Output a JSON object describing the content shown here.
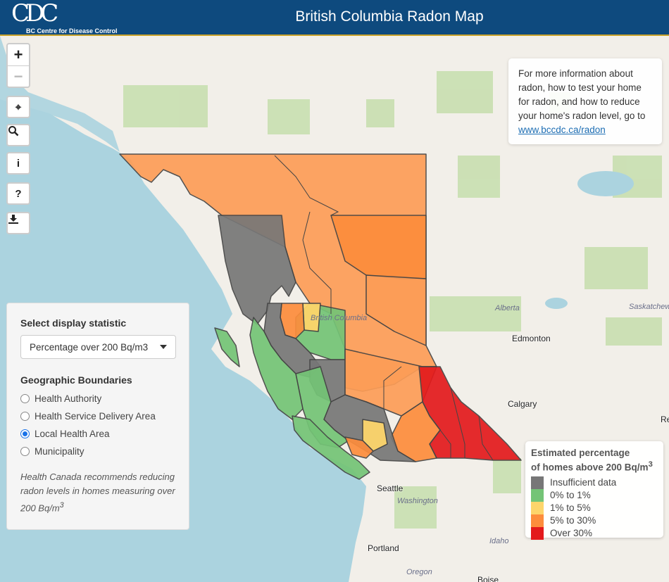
{
  "header": {
    "logo_mark": "CDC",
    "logo_text": "BC Centre for Disease Control",
    "title": "British Columbia Radon Map"
  },
  "controls": {
    "zoom_in": "+",
    "zoom_out": "−",
    "locate": "⌖",
    "search": "⚲",
    "info": "i",
    "help": "?",
    "download": "⤓"
  },
  "info_box": {
    "text": "For more information about radon, how to test your home for radon, and how to reduce your home's radon level, go to",
    "link": "www.bccdc.ca/radon"
  },
  "panel": {
    "statistic_label": "Select display statistic",
    "statistic_value": "Percentage over 200 Bq/m3",
    "boundaries_label": "Geographic Boundaries",
    "boundaries": [
      {
        "label": "Health Authority",
        "checked": false
      },
      {
        "label": "Health Service Delivery Area",
        "checked": false
      },
      {
        "label": "Local Health Area",
        "checked": true
      },
      {
        "label": "Municipality",
        "checked": false
      }
    ],
    "note": "Health Canada recommends reducing radon levels in homes measuring over 200 Bq/m",
    "note_sup": "3"
  },
  "legend": {
    "title_line1": "Estimated percentage",
    "title_line2": "of homes above 200 Bq/m",
    "title_sup": "3",
    "items": [
      {
        "label": "Insufficient data",
        "color": "#777777"
      },
      {
        "label": "0% to 1%",
        "color": "#74c476"
      },
      {
        "label": "1% to 5%",
        "color": "#fdd56b"
      },
      {
        "label": "5% to 30%",
        "color": "#fd8d3c"
      },
      {
        "label": "Over 30%",
        "color": "#e31a1c"
      }
    ]
  },
  "map_labels": {
    "british_columbia": "British Columbia",
    "alberta": "Alberta",
    "saskatchewan": "Saskatchewa",
    "edmonton": "Edmonton",
    "calgary": "Calgary",
    "seattle": "Seattle",
    "washington": "Washington",
    "portland": "Portland",
    "oregon": "Oregon",
    "idaho": "Idaho",
    "boise": "Boise",
    "regina_partial": "Re"
  },
  "colors": {
    "header": "#0e4a7e",
    "water": "#abd3df",
    "land": "#f2efe9",
    "forest": "#c8dfb0",
    "boundary": "#444444"
  }
}
